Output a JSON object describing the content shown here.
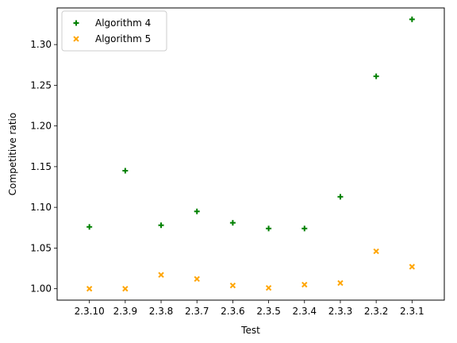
{
  "chart_data": {
    "type": "scatter",
    "title": "",
    "xlabel": "Test",
    "ylabel": "Competitive ratio",
    "categories": [
      "2.3.10",
      "2.3.9",
      "2.3.8",
      "2.3.7",
      "2.3.6",
      "2.3.5",
      "2.3.4",
      "2.3.3",
      "2.3.2",
      "2.3.1"
    ],
    "ylim": [
      0.986,
      1.345
    ],
    "yticks": [
      "1.00",
      "1.05",
      "1.10",
      "1.15",
      "1.20",
      "1.25",
      "1.30"
    ],
    "grid": false,
    "legend_position": "top-left",
    "series": [
      {
        "name": "Algorithm 4",
        "marker": "plus",
        "color": "#008000",
        "values": [
          1.076,
          1.145,
          1.078,
          1.095,
          1.081,
          1.074,
          1.074,
          1.113,
          1.261,
          1.331
        ]
      },
      {
        "name": "Algorithm 5",
        "marker": "x",
        "color": "#ffa500",
        "values": [
          1.0,
          1.0,
          1.017,
          1.012,
          1.004,
          1.001,
          1.005,
          1.007,
          1.046,
          1.027
        ]
      }
    ]
  }
}
